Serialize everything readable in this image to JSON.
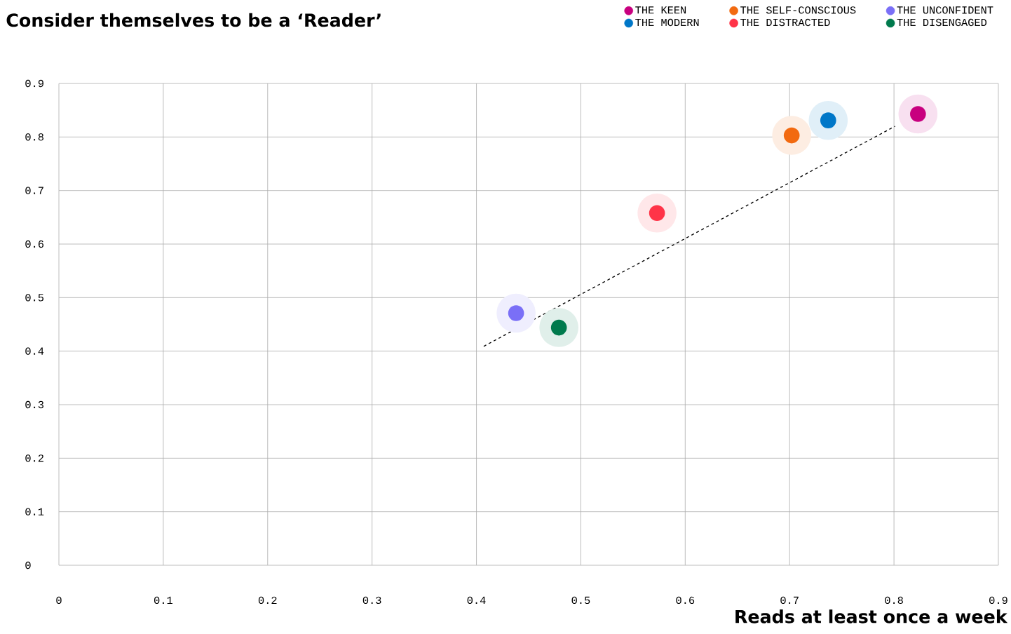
{
  "chart_data": {
    "type": "scatter",
    "title": "Consider themselves to be a ‘Reader’",
    "xlabel": "Reads at least once a week",
    "xlim": [
      0,
      0.9
    ],
    "ylim": [
      0,
      0.9
    ],
    "xticks": [
      0,
      0.1,
      0.2,
      0.3,
      0.4,
      0.5,
      0.6,
      0.7,
      0.8,
      0.9
    ],
    "yticks": [
      0,
      0.1,
      0.2,
      0.3,
      0.4,
      0.5,
      0.6,
      0.7,
      0.8,
      0.9
    ],
    "grid": true,
    "legend": "top right",
    "marker": "circle",
    "series": [
      {
        "name": "THE KEEN",
        "color": "#c8007f",
        "x": [
          0.823
        ],
        "values": [
          0.843
        ]
      },
      {
        "name": "THE MODERN",
        "color": "#0077c8",
        "x": [
          0.737
        ],
        "values": [
          0.831
        ]
      },
      {
        "name": "THE SELF-CONSCIOUS",
        "color": "#f26a10",
        "x": [
          0.702
        ],
        "values": [
          0.803
        ]
      },
      {
        "name": "THE DISTRACTED",
        "color": "#ff3448",
        "x": [
          0.573
        ],
        "values": [
          0.658
        ]
      },
      {
        "name": "THE UNCONFIDENT",
        "color": "#7a6ff7",
        "x": [
          0.438
        ],
        "values": [
          0.471
        ]
      },
      {
        "name": "THE DISENGAGED",
        "color": "#007a4d",
        "x": [
          0.479
        ],
        "values": [
          0.444
        ]
      },
      {
        "type": "line",
        "color": "#000000",
        "line_style": "dashed",
        "marker": "none",
        "x": [
          0.407,
          0.801
        ],
        "values": [
          0.409,
          0.82
        ]
      }
    ]
  }
}
